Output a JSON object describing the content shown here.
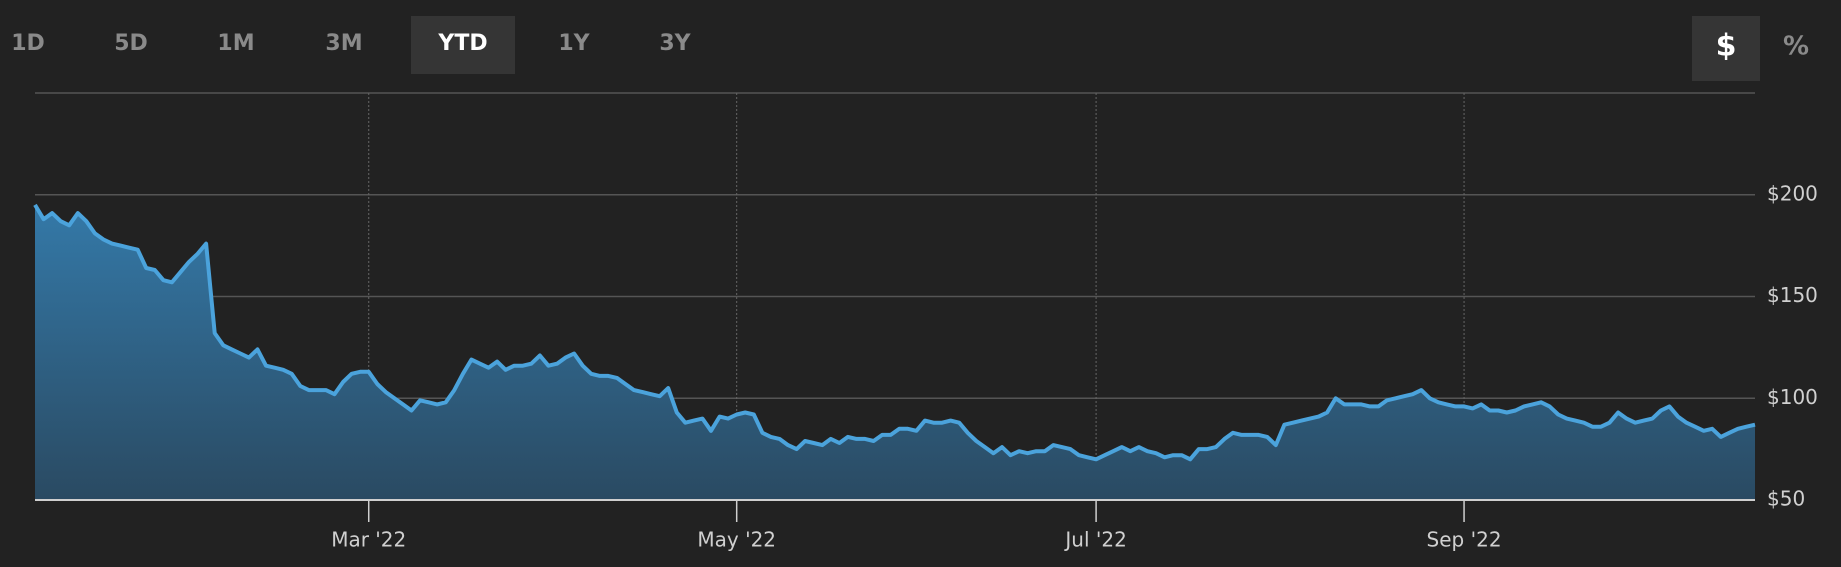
{
  "range_buttons": [
    {
      "label": "1D",
      "active": false
    },
    {
      "label": "5D",
      "active": false
    },
    {
      "label": "1M",
      "active": false
    },
    {
      "label": "3M",
      "active": false
    },
    {
      "label": "YTD",
      "active": true
    },
    {
      "label": "1Y",
      "active": false
    },
    {
      "label": "3Y",
      "active": false
    }
  ],
  "unit_buttons": [
    {
      "label": "$",
      "active": true
    },
    {
      "label": "%",
      "active": false
    }
  ],
  "chart_data": {
    "type": "area",
    "color": "#4ba3dc",
    "values": [
      195,
      188,
      191,
      187,
      185,
      191,
      187,
      181,
      178,
      176,
      175,
      174,
      173,
      164,
      163,
      158,
      157,
      162,
      167,
      171,
      176,
      132,
      126,
      124,
      122,
      120,
      124,
      116,
      115,
      114,
      112,
      106,
      104,
      104,
      104,
      102,
      108,
      112,
      113,
      113,
      107,
      103,
      100,
      97,
      94,
      99,
      98,
      97,
      98,
      104,
      112,
      119,
      117,
      115,
      118,
      114,
      116,
      116,
      117,
      121,
      116,
      117,
      120,
      122,
      116,
      112,
      111,
      111,
      110,
      107,
      104,
      103,
      102,
      101,
      105,
      93,
      88,
      89,
      90,
      84,
      91,
      90,
      92,
      93,
      92,
      83,
      81,
      80,
      77,
      75,
      79,
      78,
      77,
      80,
      78,
      81,
      80,
      80,
      79,
      82,
      82,
      85,
      85,
      84,
      89,
      88,
      88,
      89,
      88,
      83,
      79,
      76,
      73,
      76,
      72,
      74,
      73,
      74,
      74,
      77,
      76,
      75,
      72,
      71,
      70,
      72,
      74,
      76,
      74,
      76,
      74,
      73,
      71,
      72,
      72,
      70,
      75,
      75,
      76,
      80,
      83,
      82,
      82,
      82,
      81,
      77,
      87,
      88,
      89,
      90,
      91,
      93,
      100,
      97,
      97,
      97,
      96,
      96,
      99,
      100,
      101,
      102,
      104,
      100,
      98,
      97,
      96,
      96,
      95,
      97,
      94,
      94,
      93,
      94,
      96,
      97,
      98,
      96,
      92,
      90,
      89,
      88,
      86,
      86,
      88,
      93,
      90,
      88,
      89,
      90,
      94,
      96,
      91,
      88,
      86,
      84,
      85,
      81,
      83,
      85,
      86,
      87
    ],
    "xlim": [
      0,
      201
    ],
    "xticks": [
      {
        "value": 39,
        "label": "Mar '22"
      },
      {
        "value": 82,
        "label": "May '22"
      },
      {
        "value": 124,
        "label": "Jul '22"
      },
      {
        "value": 167,
        "label": "Sep '22"
      }
    ],
    "ylim": [
      50,
      250
    ],
    "yticks": [
      {
        "value": 50,
        "label": "$50"
      },
      {
        "value": 100,
        "label": "$100"
      },
      {
        "value": 150,
        "label": "$150"
      },
      {
        "value": 200,
        "label": "$200"
      }
    ],
    "grid": true
  }
}
